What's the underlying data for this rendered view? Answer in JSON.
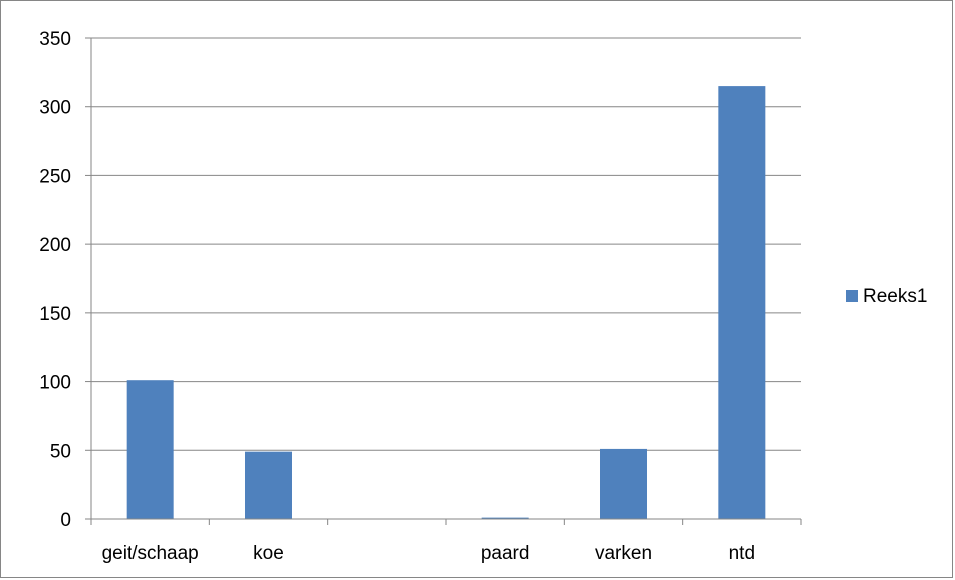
{
  "chart_data": {
    "type": "bar",
    "categories": [
      "geit/schaap",
      "koe",
      "",
      "paard",
      "varken",
      "ntd"
    ],
    "series": [
      {
        "name": "Reeks1",
        "values": [
          101,
          49,
          0,
          1,
          51,
          315
        ],
        "color": "#4f81bd"
      }
    ],
    "ylim": [
      0,
      350
    ],
    "yticks": [
      0,
      50,
      100,
      150,
      200,
      250,
      300,
      350
    ],
    "grid": true,
    "legend": "right",
    "title": "",
    "xlabel": "",
    "ylabel": ""
  }
}
